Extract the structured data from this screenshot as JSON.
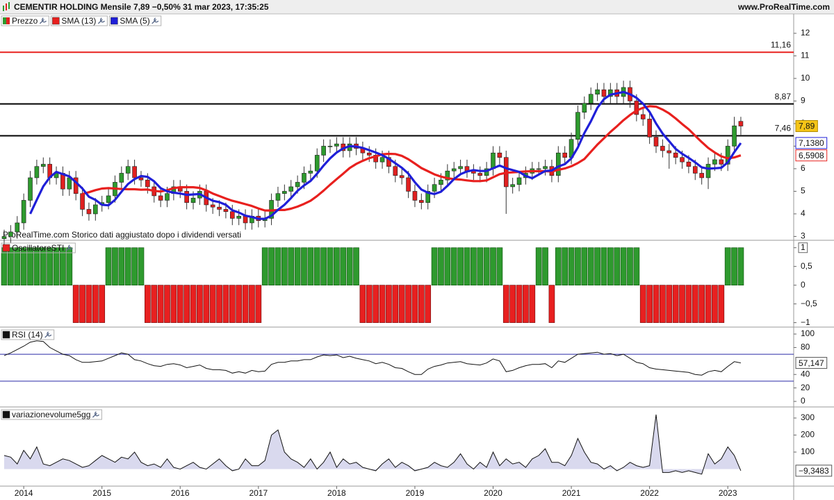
{
  "chart_data": [
    {
      "type": "candlestick",
      "title": "CEMENTIR HOLDING Mensile 7,89 −0,50% 31 mar 2023, 17:35:25",
      "source": "www.ProRealTime.com",
      "note": "ProRealTime.com Storico dati aggiustato dopo i dividendi versati",
      "name": "Prezzo",
      "color_up": "#2e9a2e",
      "color_down": "#e02020",
      "categories": [
        null,
        null,
        null,
        "2014",
        null,
        null,
        null,
        null,
        null,
        null,
        null,
        null,
        null,
        null,
        null,
        "2015",
        null,
        null,
        null,
        null,
        null,
        null,
        null,
        null,
        null,
        null,
        null,
        "2016",
        null,
        null,
        null,
        null,
        null,
        null,
        null,
        null,
        null,
        null,
        null,
        "2017",
        null,
        null,
        null,
        null,
        null,
        null,
        null,
        null,
        null,
        null,
        null,
        "2018",
        null,
        null,
        null,
        null,
        null,
        null,
        null,
        null,
        null,
        null,
        null,
        "2019",
        null,
        null,
        null,
        null,
        null,
        null,
        null,
        null,
        null,
        null,
        null,
        "2020",
        null,
        null,
        null,
        null,
        null,
        null,
        null,
        null,
        null,
        null,
        null,
        "2021",
        null,
        null,
        null,
        null,
        null,
        null,
        null,
        null,
        null,
        null,
        null,
        "2022",
        null,
        null,
        null,
        null,
        null,
        null,
        null,
        null,
        null,
        null,
        null,
        "2023",
        null,
        null
      ],
      "open": [
        2.9,
        3.0,
        3.2,
        3.6,
        4.6,
        5.6,
        6.1,
        6.2,
        5.6,
        5.8,
        5.1,
        5.6,
        4.9,
        4.2,
        4.0,
        4.4,
        4.5,
        4.8,
        5.4,
        5.8,
        6.1,
        5.6,
        5.5,
        5.2,
        4.8,
        4.6,
        4.9,
        5.2,
        5.0,
        4.5,
        4.7,
        5.0,
        4.4,
        4.3,
        4.2,
        4.1,
        3.8,
        3.9,
        3.6,
        3.9,
        3.7,
        3.8,
        4.6,
        4.9,
        5.0,
        5.2,
        5.4,
        5.8,
        5.9,
        6.6,
        7.0,
        7.0,
        7.1,
        6.8,
        7.1,
        6.9,
        6.7,
        6.6,
        6.3,
        6.5,
        6.1,
        5.7,
        5.6,
        5.0,
        4.6,
        4.5,
        5.0,
        5.3,
        5.5,
        5.9,
        6.0,
        6.1,
        5.9,
        5.8,
        5.7,
        6.0,
        6.7,
        6.5,
        5.2,
        5.3,
        5.6,
        5.8,
        6.0,
        6.0,
        6.1,
        5.7,
        6.7,
        6.5,
        7.3,
        8.5,
        8.9,
        9.3,
        9.5,
        9.2,
        9.5,
        9.2,
        9.6,
        9.0,
        8.4,
        8.2,
        7.4,
        7.0,
        6.8,
        6.7,
        6.5,
        6.3,
        6.1,
        5.8,
        5.6,
        6.2,
        6.4,
        6.2,
        7.0,
        8.1
      ],
      "high": [
        3.3,
        3.5,
        3.9,
        4.9,
        5.9,
        6.4,
        6.5,
        6.5,
        6.1,
        6.1,
        5.9,
        5.9,
        5.2,
        4.5,
        4.7,
        4.8,
        5.1,
        5.7,
        6.1,
        6.4,
        6.4,
        5.9,
        5.8,
        5.5,
        5.1,
        5.2,
        5.5,
        5.5,
        5.3,
        5.0,
        5.3,
        5.3,
        4.7,
        4.6,
        4.5,
        4.4,
        4.2,
        4.2,
        4.2,
        4.2,
        4.1,
        4.9,
        5.2,
        5.3,
        5.5,
        5.7,
        6.1,
        6.2,
        6.9,
        7.3,
        7.3,
        7.4,
        7.4,
        7.4,
        7.4,
        7.2,
        7.0,
        6.9,
        6.8,
        6.8,
        6.4,
        6.0,
        5.9,
        5.3,
        4.9,
        5.3,
        5.6,
        5.8,
        6.2,
        6.3,
        6.4,
        6.4,
        6.2,
        6.1,
        6.3,
        7.0,
        7.0,
        6.8,
        5.6,
        5.9,
        6.1,
        6.3,
        6.3,
        6.4,
        6.4,
        7.0,
        7.0,
        7.6,
        8.8,
        9.2,
        9.6,
        9.8,
        9.8,
        9.8,
        9.8,
        9.9,
        9.9,
        9.3,
        8.7,
        8.5,
        7.7,
        7.3,
        7.1,
        7.0,
        6.8,
        6.6,
        6.4,
        6.1,
        6.5,
        6.7,
        6.7,
        7.3,
        8.3,
        8.3
      ],
      "low": [
        2.6,
        2.7,
        2.9,
        3.3,
        4.3,
        5.3,
        5.8,
        5.3,
        5.3,
        4.8,
        4.8,
        4.6,
        3.9,
        3.7,
        3.7,
        4.1,
        4.2,
        4.5,
        5.1,
        5.5,
        5.3,
        5.2,
        4.9,
        4.5,
        4.3,
        4.3,
        4.6,
        4.7,
        4.2,
        4.2,
        4.4,
        4.1,
        4.0,
        3.9,
        3.8,
        3.5,
        3.5,
        3.3,
        3.3,
        3.4,
        3.4,
        3.5,
        4.3,
        4.6,
        4.7,
        4.9,
        5.1,
        5.5,
        5.6,
        6.3,
        6.7,
        6.7,
        6.5,
        6.5,
        6.6,
        6.4,
        6.3,
        6.0,
        6.0,
        5.8,
        5.4,
        5.3,
        4.7,
        4.3,
        4.2,
        4.2,
        4.7,
        5.0,
        5.2,
        5.6,
        5.7,
        5.6,
        5.5,
        5.4,
        5.4,
        5.7,
        6.2,
        4.0,
        4.9,
        5.0,
        5.3,
        5.5,
        5.7,
        5.7,
        5.4,
        5.4,
        6.2,
        6.2,
        7.0,
        8.2,
        8.6,
        9.0,
        8.9,
        8.9,
        8.9,
        8.9,
        8.7,
        8.1,
        7.9,
        7.1,
        6.7,
        6.5,
        6.0,
        6.2,
        6.0,
        5.8,
        5.5,
        5.3,
        5.1,
        5.9,
        5.9,
        5.9,
        6.7,
        7.5
      ],
      "close": [
        3.0,
        3.2,
        3.6,
        4.6,
        5.6,
        6.1,
        6.2,
        5.6,
        5.8,
        5.1,
        5.6,
        4.9,
        4.2,
        4.0,
        4.4,
        4.5,
        4.8,
        5.4,
        5.8,
        6.1,
        5.6,
        5.5,
        5.2,
        4.8,
        4.6,
        4.9,
        5.2,
        5.0,
        4.5,
        4.7,
        5.0,
        4.4,
        4.3,
        4.2,
        4.1,
        3.8,
        3.9,
        3.6,
        3.9,
        3.7,
        3.8,
        4.6,
        4.9,
        5.0,
        5.2,
        5.4,
        5.8,
        5.9,
        6.6,
        7.0,
        7.0,
        7.1,
        6.8,
        7.1,
        6.9,
        6.7,
        6.6,
        6.3,
        6.5,
        6.1,
        5.7,
        5.6,
        5.0,
        4.6,
        4.5,
        5.0,
        5.3,
        5.5,
        5.9,
        6.0,
        6.1,
        5.9,
        5.8,
        5.7,
        6.0,
        6.7,
        6.5,
        5.2,
        5.3,
        5.6,
        5.8,
        6.0,
        6.0,
        6.1,
        5.7,
        6.7,
        6.5,
        7.3,
        8.5,
        8.9,
        9.3,
        9.5,
        9.2,
        9.5,
        9.2,
        9.6,
        9.0,
        8.4,
        8.2,
        7.4,
        7.0,
        6.8,
        6.7,
        6.5,
        6.3,
        6.1,
        5.8,
        5.6,
        6.2,
        6.4,
        6.2,
        7.0,
        7.9,
        7.89
      ],
      "last_close_label": "7,89",
      "series": [
        {
          "name": "SMA (13)",
          "color": "#e8201e",
          "last_value_label": "6,5908",
          "values": [
            null,
            null,
            null,
            null,
            null,
            null,
            null,
            null,
            null,
            null,
            null,
            null,
            4.88,
            4.96,
            5.05,
            5.12,
            5.14,
            5.12,
            5.1,
            5.09,
            5.09,
            5.07,
            5.08,
            5.02,
            4.99,
            5.05,
            5.14,
            5.18,
            5.18,
            5.18,
            5.15,
            5.04,
            4.9,
            4.79,
            4.68,
            4.58,
            4.51,
            4.43,
            4.35,
            4.24,
            4.15,
            4.15,
            4.17,
            4.17,
            4.23,
            4.32,
            4.44,
            4.58,
            4.79,
            5.03,
            5.29,
            5.54,
            5.78,
            6.03,
            6.21,
            6.35,
            6.47,
            6.55,
            6.64,
            6.66,
            6.65,
            6.57,
            6.42,
            6.23,
            6.03,
            5.89,
            5.75,
            5.65,
            5.58,
            5.54,
            5.52,
            5.48,
            5.45,
            5.45,
            5.48,
            5.62,
            5.76,
            5.82,
            5.84,
            5.86,
            5.88,
            5.89,
            5.89,
            5.89,
            5.88,
            5.95,
            6.01,
            6.11,
            6.25,
            6.43,
            6.75,
            7.07,
            7.35,
            7.63,
            7.88,
            8.15,
            8.38,
            8.58,
            8.7,
            8.77,
            8.75,
            8.62,
            8.45,
            8.23,
            7.98,
            7.75,
            7.46,
            7.18,
            6.92,
            6.72,
            6.55,
            6.46,
            6.5,
            6.5908
          ]
        },
        {
          "name": "SMA (5)",
          "color": "#1f1fd8",
          "last_value_label": "7,1380",
          "values": [
            null,
            null,
            null,
            null,
            4.0,
            4.62,
            5.22,
            5.62,
            5.86,
            5.76,
            5.66,
            5.4,
            5.12,
            4.76,
            4.62,
            4.4,
            4.38,
            4.62,
            4.98,
            5.32,
            5.54,
            5.68,
            5.64,
            5.44,
            5.14,
            5.0,
            4.94,
            4.9,
            4.84,
            4.86,
            4.88,
            4.72,
            4.58,
            4.52,
            4.4,
            4.16,
            4.06,
            3.92,
            3.86,
            3.78,
            3.78,
            3.92,
            4.18,
            4.4,
            4.7,
            5.02,
            5.26,
            5.46,
            5.78,
            6.14,
            6.46,
            6.72,
            6.9,
            7.0,
            6.98,
            6.92,
            6.82,
            6.72,
            6.6,
            6.44,
            6.24,
            6.04,
            5.78,
            5.4,
            5.08,
            4.94,
            4.88,
            4.98,
            5.24,
            5.54,
            5.76,
            5.88,
            5.94,
            5.9,
            5.9,
            6.02,
            6.14,
            6.02,
            5.94,
            5.86,
            5.68,
            5.58,
            5.74,
            5.9,
            5.92,
            6.1,
            6.2,
            6.46,
            6.94,
            7.58,
            8.1,
            8.7,
            9.08,
            9.28,
            9.34,
            9.4,
            9.3,
            9.14,
            8.88,
            8.52,
            8.0,
            7.56,
            7.22,
            6.88,
            6.66,
            6.48,
            6.28,
            6.06,
            6.0,
            6.02,
            6.04,
            6.28,
            6.74,
            7.138
          ]
        }
      ],
      "levels": [
        {
          "value": 11.16,
          "label": "11,16",
          "color": "#e8201e"
        },
        {
          "value": 8.87,
          "label": "8,87",
          "color": "#000000"
        },
        {
          "value": 7.46,
          "label": "7,46",
          "color": "#000000"
        }
      ],
      "ylim": [
        2.86,
        12.86
      ],
      "yticks": [
        3,
        4,
        5,
        6,
        7,
        8,
        9,
        10,
        11,
        12
      ]
    },
    {
      "type": "bar",
      "title": "OscillatoreSTI",
      "color_up": "#2e9a2e",
      "color_down": "#e82020",
      "values": [
        1,
        1,
        1,
        1,
        1,
        1,
        1,
        1,
        1,
        1,
        1,
        -1,
        -1,
        -1,
        -1,
        -1,
        1,
        1,
        1,
        1,
        1,
        1,
        -1,
        -1,
        -1,
        -1,
        -1,
        -1,
        -1,
        -1,
        -1,
        -1,
        -1,
        -1,
        -1,
        -1,
        -1,
        -1,
        -1,
        -1,
        1,
        1,
        1,
        1,
        1,
        1,
        1,
        1,
        1,
        1,
        1,
        1,
        1,
        1,
        1,
        -1,
        -1,
        -1,
        -1,
        -1,
        -1,
        -1,
        -1,
        -1,
        -1,
        -1,
        1,
        1,
        1,
        1,
        1,
        1,
        1,
        1,
        1,
        1,
        1,
        -1,
        -1,
        -1,
        -1,
        -1,
        1,
        1,
        -1,
        1,
        1,
        1,
        1,
        1,
        1,
        1,
        1,
        1,
        1,
        1,
        1,
        1,
        -1,
        -1,
        -1,
        -1,
        -1,
        -1,
        -1,
        -1,
        -1,
        -1,
        -1,
        -1,
        -1,
        1,
        1,
        1
      ],
      "ylim": [
        -1.1,
        1.18
      ],
      "yticks": [
        1,
        {
          "value": 0.5,
          "label": "0,5"
        },
        0,
        {
          "value": -0.5,
          "label": "−0,5"
        },
        {
          "value": -1,
          "label": "−1"
        }
      ]
    },
    {
      "type": "line",
      "title": "RSI (14)",
      "color": "#111111",
      "levels_color": "#2a2aa8",
      "levels": [
        70,
        30
      ],
      "values": [
        68,
        72,
        77,
        82,
        88,
        90,
        89,
        80,
        75,
        70,
        68,
        62,
        58,
        58,
        59,
        60,
        64,
        68,
        72,
        70,
        62,
        60,
        56,
        53,
        52,
        55,
        56,
        54,
        50,
        52,
        54,
        49,
        47,
        47,
        46,
        42,
        44,
        42,
        46,
        44,
        45,
        55,
        58,
        58,
        60,
        60,
        62,
        62,
        66,
        69,
        68,
        69,
        65,
        67,
        64,
        62,
        60,
        56,
        58,
        55,
        50,
        49,
        44,
        40,
        40,
        48,
        52,
        54,
        57,
        58,
        59,
        56,
        55,
        54,
        57,
        63,
        60,
        44,
        46,
        50,
        53,
        55,
        55,
        56,
        50,
        60,
        58,
        64,
        70,
        71,
        72,
        73,
        70,
        71,
        68,
        70,
        64,
        58,
        56,
        50,
        48,
        47,
        46,
        45,
        44,
        43,
        40,
        39,
        44,
        46,
        44,
        52,
        59,
        57.147
      ],
      "last_value_label": "57,147",
      "ylim": [
        -7.2,
        109.3
      ],
      "yticks": [
        0,
        20,
        40,
        80,
        100
      ]
    },
    {
      "type": "area",
      "title": "variazionevolume5gg",
      "color": "#111111",
      "fill": "#d9d9ee",
      "values": [
        80,
        70,
        30,
        110,
        60,
        130,
        30,
        20,
        40,
        60,
        50,
        30,
        10,
        20,
        50,
        80,
        60,
        40,
        70,
        60,
        100,
        40,
        20,
        30,
        10,
        60,
        10,
        0,
        20,
        40,
        10,
        0,
        30,
        60,
        20,
        -10,
        0,
        60,
        20,
        20,
        50,
        200,
        230,
        100,
        60,
        40,
        10,
        60,
        0,
        40,
        100,
        10,
        60,
        30,
        40,
        10,
        0,
        -10,
        30,
        60,
        10,
        40,
        20,
        -10,
        0,
        10,
        40,
        20,
        10,
        40,
        90,
        30,
        0,
        40,
        10,
        100,
        20,
        60,
        30,
        40,
        10,
        60,
        80,
        120,
        40,
        40,
        20,
        80,
        180,
        100,
        40,
        30,
        0,
        20,
        -10,
        10,
        40,
        20,
        10,
        20,
        320,
        -20,
        -20,
        -10,
        -20,
        -10,
        -20,
        -30,
        90,
        30,
        60,
        130,
        80,
        -9.3483
      ],
      "last_value_label": "−9,3483",
      "ylim": [
        -100,
        361
      ],
      "yticks": [
        100,
        200,
        300
      ]
    }
  ]
}
